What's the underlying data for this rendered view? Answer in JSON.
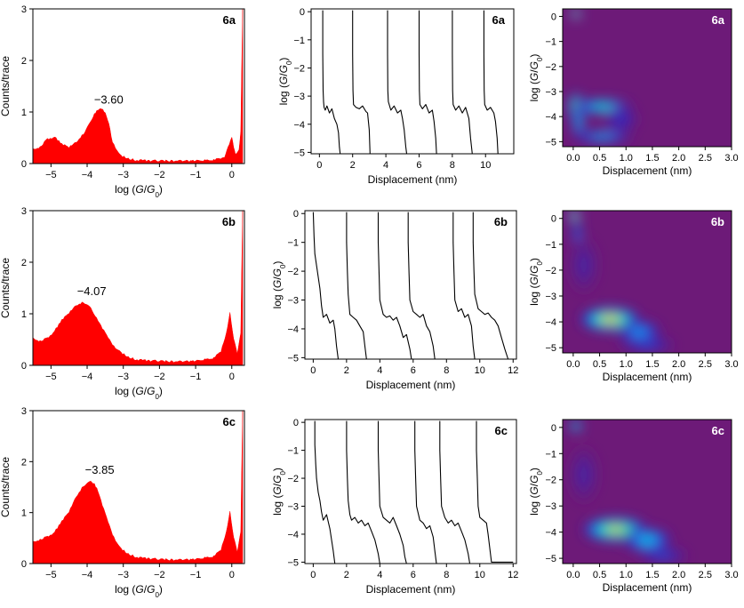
{
  "chart_data": [
    {
      "panel": "6a",
      "type": "area",
      "tag": "6a",
      "xlabel_parts": [
        "log (",
        "G",
        "/",
        "G",
        "0",
        ")"
      ],
      "ylabel": "Counts/trace",
      "xlim": [
        -5.5,
        0.35
      ],
      "ylim": [
        0,
        3
      ],
      "xticks": [
        -5,
        -4,
        -3,
        -2,
        -1,
        0
      ],
      "yticks": [
        0,
        1,
        2,
        3
      ],
      "peak_label": "−3.60",
      "peak_x": -3.6,
      "peak_y": 1.25,
      "x": [
        -5.5,
        -5.3,
        -5.1,
        -4.9,
        -4.7,
        -4.5,
        -4.3,
        -4.1,
        -3.9,
        -3.8,
        -3.7,
        -3.6,
        -3.5,
        -3.4,
        -3.3,
        -3.1,
        -2.9,
        -2.7,
        -2.5,
        -2.0,
        -1.5,
        -1.0,
        -0.5,
        -0.2,
        -0.1,
        0.0,
        0.05,
        0.1,
        0.2,
        0.25,
        0.3
      ],
      "values": [
        0.25,
        0.3,
        0.45,
        0.5,
        0.35,
        0.3,
        0.4,
        0.55,
        0.8,
        0.95,
        1.02,
        1.05,
        0.95,
        0.75,
        0.4,
        0.15,
        0.08,
        0.05,
        0.04,
        0.03,
        0.03,
        0.03,
        0.05,
        0.1,
        0.3,
        0.5,
        0.3,
        0.15,
        0.25,
        0.6,
        3.0
      ],
      "color": "#ff0000"
    },
    {
      "panel": "6b",
      "type": "area",
      "tag": "6b",
      "xlabel_parts": [
        "log (",
        "G",
        "/",
        "G",
        "0",
        ")"
      ],
      "ylabel": "Counts/trace",
      "xlim": [
        -5.5,
        0.35
      ],
      "ylim": [
        0,
        3
      ],
      "xticks": [
        -5,
        -4,
        -3,
        -2,
        -1,
        0
      ],
      "yticks": [
        0,
        1,
        2,
        3
      ],
      "peak_label": "−4.07",
      "peak_x": -4.07,
      "peak_y": 1.45,
      "x": [
        -5.5,
        -5.3,
        -5.1,
        -4.9,
        -4.7,
        -4.5,
        -4.3,
        -4.1,
        -3.9,
        -3.7,
        -3.5,
        -3.3,
        -3.1,
        -2.9,
        -2.7,
        -2.5,
        -2.0,
        -1.5,
        -1.0,
        -0.5,
        -0.3,
        -0.15,
        -0.05,
        0.05,
        0.15,
        0.25,
        0.3
      ],
      "values": [
        0.5,
        0.45,
        0.5,
        0.65,
        0.85,
        1.0,
        1.15,
        1.2,
        1.1,
        0.85,
        0.6,
        0.38,
        0.25,
        0.15,
        0.1,
        0.08,
        0.06,
        0.05,
        0.06,
        0.12,
        0.25,
        0.6,
        1.0,
        0.5,
        0.2,
        0.6,
        3.0
      ],
      "color": "#ff0000"
    },
    {
      "panel": "6c",
      "type": "area",
      "tag": "6c",
      "xlabel_parts": [
        "log (",
        "G",
        "/",
        "G",
        "0",
        ")"
      ],
      "ylabel": "Counts/trace",
      "xlim": [
        -5.5,
        0.35
      ],
      "ylim": [
        0,
        3
      ],
      "xticks": [
        -5,
        -4,
        -3,
        -2,
        -1,
        0
      ],
      "yticks": [
        0,
        1,
        2,
        3
      ],
      "peak_label": "−3.85",
      "peak_x": -3.85,
      "peak_y": 1.85,
      "x": [
        -5.5,
        -5.3,
        -5.1,
        -4.9,
        -4.7,
        -4.5,
        -4.3,
        -4.1,
        -3.9,
        -3.8,
        -3.7,
        -3.5,
        -3.3,
        -3.1,
        -2.9,
        -2.7,
        -2.5,
        -2.0,
        -1.5,
        -1.0,
        -0.5,
        -0.3,
        -0.15,
        -0.05,
        0.05,
        0.15,
        0.25,
        0.3
      ],
      "values": [
        0.4,
        0.45,
        0.5,
        0.6,
        0.8,
        1.0,
        1.3,
        1.5,
        1.6,
        1.55,
        1.4,
        0.95,
        0.55,
        0.3,
        0.18,
        0.12,
        0.09,
        0.06,
        0.05,
        0.06,
        0.12,
        0.25,
        0.6,
        1.0,
        0.5,
        0.2,
        0.6,
        3.0
      ],
      "color": "#ff0000"
    },
    {
      "panel": "6a",
      "type": "line",
      "tag": "6a",
      "xlabel": "Displacement (nm)",
      "ylabel_parts": [
        "log (",
        "G",
        "/",
        "G",
        "0",
        ")"
      ],
      "xlim": [
        -0.5,
        11.7
      ],
      "ylim": [
        -5.05,
        0.1
      ],
      "xticks": [
        0,
        2,
        4,
        6,
        8,
        10
      ],
      "yticks": [
        0,
        -1,
        -2,
        -3,
        -4,
        -5
      ],
      "series": [
        {
          "x": [
            0.2,
            0.2,
            0.22,
            0.25,
            0.28,
            0.35,
            0.45,
            0.6,
            0.75,
            0.9,
            1.05,
            1.15,
            1.2,
            1.25
          ],
          "y": [
            0.05,
            -1.5,
            -2.8,
            -3.2,
            -3.4,
            -3.5,
            -3.35,
            -3.6,
            -3.45,
            -3.8,
            -4.0,
            -4.3,
            -4.8,
            -5.05
          ]
        },
        {
          "x": [
            2.0,
            2.0,
            2.02,
            2.05,
            2.2,
            2.4,
            2.6,
            2.8,
            2.9,
            3.0,
            3.05
          ],
          "y": [
            0.05,
            -1.5,
            -2.8,
            -3.3,
            -3.4,
            -3.45,
            -3.35,
            -3.55,
            -3.6,
            -4.2,
            -5.05
          ]
        },
        {
          "x": [
            4.1,
            4.1,
            4.12,
            4.15,
            4.3,
            4.5,
            4.7,
            4.9,
            5.0,
            5.1,
            5.2,
            5.25
          ],
          "y": [
            0.05,
            -1.5,
            -2.8,
            -3.2,
            -3.5,
            -3.35,
            -3.6,
            -3.5,
            -3.8,
            -4.2,
            -4.8,
            -5.05
          ]
        },
        {
          "x": [
            6.0,
            6.0,
            6.02,
            6.05,
            6.2,
            6.4,
            6.6,
            6.8,
            6.9,
            7.0,
            7.05
          ],
          "y": [
            0.05,
            -1.5,
            -2.8,
            -3.3,
            -3.45,
            -3.3,
            -3.6,
            -3.5,
            -3.9,
            -4.5,
            -5.05
          ]
        },
        {
          "x": [
            8.0,
            8.0,
            8.02,
            8.05,
            8.2,
            8.4,
            8.6,
            8.8,
            9.0,
            9.1,
            9.2
          ],
          "y": [
            0.05,
            -1.5,
            -2.8,
            -3.3,
            -3.5,
            -3.35,
            -3.6,
            -3.4,
            -3.8,
            -4.5,
            -5.05
          ]
        },
        {
          "x": [
            9.9,
            9.9,
            9.92,
            9.95,
            10.1,
            10.3,
            10.5,
            10.6,
            10.7,
            10.75
          ],
          "y": [
            0.05,
            -1.5,
            -2.8,
            -3.3,
            -3.5,
            -3.4,
            -3.6,
            -3.9,
            -4.5,
            -5.05
          ]
        }
      ]
    },
    {
      "panel": "6b",
      "type": "line",
      "tag": "6b",
      "xlabel": "Displacement (nm)",
      "ylabel_parts": [
        "log (",
        "G",
        "/",
        "G",
        "0",
        ")"
      ],
      "xlim": [
        -0.5,
        12.2
      ],
      "ylim": [
        -5.05,
        0.1
      ],
      "xticks": [
        0,
        2,
        4,
        6,
        8,
        10,
        12
      ],
      "yticks": [
        0,
        -1,
        -2,
        -3,
        -4,
        -5
      ],
      "series": [
        {
          "x": [
            0.0,
            0.05,
            0.1,
            0.2,
            0.3,
            0.4,
            0.5,
            0.6,
            0.8,
            1.0,
            1.2,
            1.3,
            1.4,
            1.5
          ],
          "y": [
            0.05,
            -0.8,
            -1.4,
            -1.8,
            -2.2,
            -2.6,
            -3.2,
            -3.6,
            -3.5,
            -3.8,
            -3.7,
            -4.0,
            -4.6,
            -5.05
          ]
        },
        {
          "x": [
            2.0,
            2.0,
            2.05,
            2.1,
            2.2,
            2.4,
            2.6,
            2.8,
            3.0,
            3.1,
            3.2
          ],
          "y": [
            0.05,
            -1.0,
            -2.0,
            -2.8,
            -3.5,
            -3.6,
            -3.7,
            -3.9,
            -4.1,
            -4.6,
            -5.05
          ]
        },
        {
          "x": [
            3.9,
            3.9,
            3.95,
            4.0,
            4.2,
            4.4,
            4.6,
            4.8,
            5.0,
            5.2,
            5.4,
            5.6,
            5.8,
            5.9
          ],
          "y": [
            0.05,
            -1.0,
            -2.0,
            -3.0,
            -3.5,
            -3.6,
            -3.55,
            -3.7,
            -3.6,
            -3.9,
            -4.3,
            -4.2,
            -4.7,
            -5.05
          ]
        },
        {
          "x": [
            5.7,
            5.7,
            5.75,
            5.8,
            6.0,
            6.2,
            6.4,
            6.6,
            6.8,
            7.0,
            7.2,
            7.3
          ],
          "y": [
            0.05,
            -1.0,
            -2.0,
            -3.0,
            -3.4,
            -3.5,
            -3.6,
            -3.5,
            -3.9,
            -4.1,
            -4.6,
            -5.05
          ]
        },
        {
          "x": [
            8.4,
            8.4,
            8.45,
            8.5,
            8.7,
            8.9,
            9.1,
            9.3,
            9.5,
            9.6,
            9.7
          ],
          "y": [
            0.05,
            -1.0,
            -2.0,
            -3.0,
            -3.4,
            -3.3,
            -3.6,
            -3.5,
            -3.9,
            -4.6,
            -5.05
          ]
        },
        {
          "x": [
            9.6,
            9.6,
            9.65,
            9.7,
            9.9,
            10.1,
            10.3,
            10.5,
            10.7,
            10.9,
            11.1,
            11.3,
            11.5,
            11.7
          ],
          "y": [
            0.05,
            -1.0,
            -2.0,
            -2.8,
            -3.3,
            -3.4,
            -3.5,
            -3.45,
            -3.6,
            -3.7,
            -3.9,
            -4.3,
            -4.7,
            -5.05
          ]
        }
      ]
    },
    {
      "panel": "6c",
      "type": "line",
      "tag": "6c",
      "xlabel": "Displacement (nm)",
      "ylabel_parts": [
        "log (",
        "G",
        "/",
        "G",
        "0",
        ")"
      ],
      "xlim": [
        -0.5,
        12.2
      ],
      "ylim": [
        -5.05,
        0.1
      ],
      "xticks": [
        0,
        2,
        4,
        6,
        8,
        10,
        12
      ],
      "yticks": [
        0,
        -1,
        -2,
        -3,
        -4,
        -5
      ],
      "series": [
        {
          "x": [
            0.1,
            0.1,
            0.15,
            0.2,
            0.3,
            0.4,
            0.5,
            0.6,
            0.8,
            1.0,
            1.1,
            1.2,
            1.3
          ],
          "y": [
            0.05,
            -0.8,
            -1.5,
            -2.0,
            -2.5,
            -2.8,
            -3.2,
            -3.5,
            -3.3,
            -3.8,
            -4.2,
            -4.6,
            -5.05
          ]
        },
        {
          "x": [
            2.0,
            2.0,
            2.05,
            2.1,
            2.2,
            2.3,
            2.5,
            2.7,
            2.9,
            3.1,
            3.3,
            3.5,
            3.7,
            3.9,
            4.0
          ],
          "y": [
            0.05,
            -1.0,
            -2.0,
            -2.8,
            -3.3,
            -3.5,
            -3.4,
            -3.6,
            -3.5,
            -3.7,
            -3.6,
            -3.9,
            -4.2,
            -4.7,
            -5.05
          ]
        },
        {
          "x": [
            3.9,
            3.9,
            3.95,
            4.0,
            4.2,
            4.4,
            4.6,
            4.8,
            5.0,
            5.2,
            5.4,
            5.5,
            5.6
          ],
          "y": [
            0.05,
            -1.0,
            -2.0,
            -3.0,
            -3.4,
            -3.5,
            -3.6,
            -3.4,
            -3.7,
            -4.0,
            -4.4,
            -4.8,
            -5.05
          ]
        },
        {
          "x": [
            6.1,
            6.1,
            6.15,
            6.2,
            6.4,
            6.6,
            6.8,
            7.0,
            7.2,
            7.3,
            7.4
          ],
          "y": [
            0.05,
            -1.0,
            -2.0,
            -3.0,
            -3.5,
            -3.6,
            -3.8,
            -3.7,
            -4.1,
            -4.6,
            -5.05
          ]
        },
        {
          "x": [
            7.6,
            7.6,
            7.65,
            7.7,
            7.9,
            8.1,
            8.3,
            8.5,
            8.7,
            8.9,
            9.1,
            9.3,
            9.4
          ],
          "y": [
            0.05,
            -1.0,
            -2.0,
            -3.0,
            -3.4,
            -3.6,
            -3.5,
            -3.7,
            -3.6,
            -3.9,
            -4.2,
            -4.7,
            -5.05
          ]
        },
        {
          "x": [
            9.8,
            9.8,
            9.85,
            9.9,
            10.0,
            10.2,
            10.4,
            10.5,
            10.6,
            10.7,
            11.0,
            11.5,
            12.0
          ],
          "y": [
            0.05,
            -1.0,
            -2.0,
            -3.0,
            -3.4,
            -3.5,
            -3.6,
            -4.0,
            -4.5,
            -5.0,
            -5.0,
            -5.0,
            -5.0
          ]
        }
      ]
    },
    {
      "panel": "6a",
      "type": "heatmap",
      "tag": "6a",
      "xlabel": "Displacement (nm)",
      "ylabel_parts": [
        "log (",
        "G",
        "/",
        "G",
        "0",
        ")"
      ],
      "xlim": [
        -0.2,
        3.0
      ],
      "ylim": [
        -5.2,
        0.3
      ],
      "xticks": [
        0.0,
        0.5,
        1.0,
        1.5,
        2.0,
        2.5,
        3.0
      ],
      "xtick_labels": [
        "0.0",
        "0.5",
        "1.0",
        "1.5",
        "2.0",
        "2.5",
        "3.0"
      ],
      "yticks": [
        0,
        -1,
        -2,
        -3,
        -4,
        -5
      ],
      "background": "#6d1a78",
      "blobs": [
        {
          "cx": 0.05,
          "cy": 0.1,
          "rx": 0.1,
          "ry": 0.18,
          "intensity": 1.0
        },
        {
          "cx": 0.05,
          "cy": -3.6,
          "rx": 0.14,
          "ry": 0.5,
          "intensity": 0.95
        },
        {
          "cx": 0.55,
          "cy": -3.6,
          "rx": 0.55,
          "ry": 0.28,
          "intensity": 0.65
        },
        {
          "cx": 0.1,
          "cy": -4.2,
          "rx": 0.1,
          "ry": 0.7,
          "intensity": 0.55
        },
        {
          "cx": 0.55,
          "cy": -4.8,
          "rx": 0.55,
          "ry": 0.22,
          "intensity": 0.5
        },
        {
          "cx": 0.9,
          "cy": -4.1,
          "rx": 0.3,
          "ry": 0.5,
          "intensity": 0.22
        }
      ]
    },
    {
      "panel": "6b",
      "type": "heatmap",
      "tag": "6b",
      "xlabel": "Displacement (nm)",
      "ylabel_parts": [
        "log (",
        "G",
        "/",
        "G",
        "0",
        ")"
      ],
      "xlim": [
        -0.2,
        3.0
      ],
      "ylim": [
        -5.2,
        0.3
      ],
      "xticks": [
        0.0,
        0.5,
        1.0,
        1.5,
        2.0,
        2.5,
        3.0
      ],
      "xtick_labels": [
        "0.0",
        "0.5",
        "1.0",
        "1.5",
        "2.0",
        "2.5",
        "3.0"
      ],
      "yticks": [
        0,
        -1,
        -2,
        -3,
        -4,
        -5
      ],
      "background": "#6d1a78",
      "blobs": [
        {
          "cx": 0.02,
          "cy": 0.1,
          "rx": 0.1,
          "ry": 0.25,
          "intensity": 1.0
        },
        {
          "cx": 0.08,
          "cy": -0.6,
          "rx": 0.08,
          "ry": 0.5,
          "intensity": 0.4
        },
        {
          "cx": 0.7,
          "cy": -3.9,
          "rx": 0.55,
          "ry": 0.45,
          "intensity": 0.95
        },
        {
          "cx": 1.25,
          "cy": -4.4,
          "rx": 0.4,
          "ry": 0.45,
          "intensity": 0.45
        },
        {
          "cx": 0.2,
          "cy": -1.8,
          "rx": 0.25,
          "ry": 1.0,
          "intensity": 0.12
        },
        {
          "cx": 1.4,
          "cy": -4.9,
          "rx": 0.5,
          "ry": 0.25,
          "intensity": 0.3
        }
      ]
    },
    {
      "panel": "6c",
      "type": "heatmap",
      "tag": "6c",
      "xlabel": "Displacement (nm)",
      "ylabel_parts": [
        "log (",
        "G",
        "/",
        "G",
        "0",
        ")"
      ],
      "xlim": [
        -0.2,
        3.0
      ],
      "ylim": [
        -5.2,
        0.3
      ],
      "xticks": [
        0.0,
        0.5,
        1.0,
        1.5,
        2.0,
        2.5,
        3.0
      ],
      "xtick_labels": [
        "0.0",
        "0.5",
        "1.0",
        "1.5",
        "2.0",
        "2.5",
        "3.0"
      ],
      "yticks": [
        0,
        -1,
        -2,
        -3,
        -4,
        -5
      ],
      "background": "#6d1a78",
      "blobs": [
        {
          "cx": 0.05,
          "cy": 0.05,
          "rx": 0.12,
          "ry": 0.2,
          "intensity": 0.75
        },
        {
          "cx": 0.8,
          "cy": -3.9,
          "rx": 0.6,
          "ry": 0.45,
          "intensity": 0.9
        },
        {
          "cx": 1.4,
          "cy": -4.3,
          "rx": 0.45,
          "ry": 0.45,
          "intensity": 0.55
        },
        {
          "cx": 0.2,
          "cy": -1.8,
          "rx": 0.25,
          "ry": 1.0,
          "intensity": 0.12
        },
        {
          "cx": 1.7,
          "cy": -4.9,
          "rx": 0.45,
          "ry": 0.25,
          "intensity": 0.3
        }
      ]
    }
  ]
}
